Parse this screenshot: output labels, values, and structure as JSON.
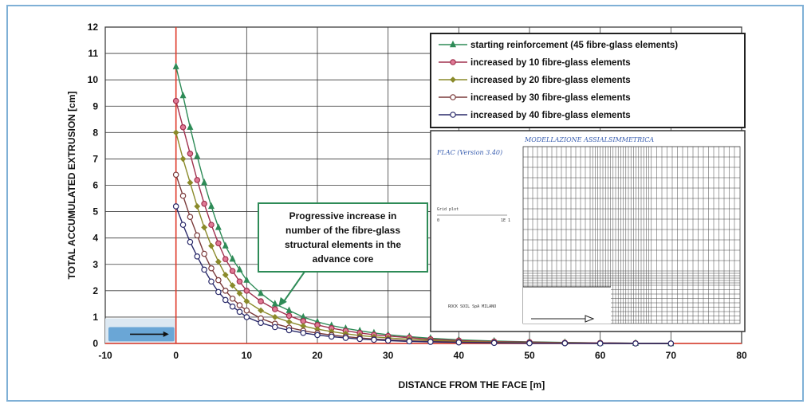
{
  "chart_data": {
    "type": "line",
    "title": "",
    "xlabel": "DISTANCE FROM THE FACE  [m]",
    "ylabel": "TOTAL ACCUMULATED EXTRUSION  [cm]",
    "xlim": [
      -10,
      80
    ],
    "ylim": [
      0,
      12
    ],
    "xticks": [
      "-10",
      "0",
      "10",
      "20",
      "30",
      "40",
      "50",
      "60",
      "70",
      "80"
    ],
    "yticks": [
      "0",
      "1",
      "2",
      "3",
      "4",
      "5",
      "6",
      "7",
      "8",
      "9",
      "10",
      "11",
      "12"
    ],
    "grid": true,
    "legend_position": "top-right",
    "series": [
      {
        "name": "starting reinforcement (45 fibre-glass elements)",
        "color": "#2e8b57",
        "marker": "triangle",
        "x": [
          0,
          1,
          2,
          3,
          4,
          5,
          6,
          7,
          8,
          9,
          10,
          12,
          14,
          16,
          18,
          20,
          22,
          24,
          26,
          28,
          30,
          33,
          36,
          40,
          45,
          50,
          55,
          60,
          65,
          70
        ],
        "y": [
          10.5,
          9.4,
          8.2,
          7.1,
          6.1,
          5.2,
          4.4,
          3.7,
          3.2,
          2.8,
          2.4,
          1.9,
          1.5,
          1.25,
          1.0,
          0.82,
          0.68,
          0.57,
          0.48,
          0.4,
          0.33,
          0.26,
          0.2,
          0.14,
          0.09,
          0.06,
          0.04,
          0.02,
          0.01,
          0.0
        ]
      },
      {
        "name": "increased by 10 fibre-glass elements",
        "color": "#a0304e",
        "marker": "circle",
        "x": [
          0,
          1,
          2,
          3,
          4,
          5,
          6,
          7,
          8,
          9,
          10,
          12,
          14,
          16,
          18,
          20,
          22,
          24,
          26,
          28,
          30,
          33,
          36,
          40,
          45,
          50,
          55,
          60,
          65,
          70
        ],
        "y": [
          9.2,
          8.2,
          7.2,
          6.2,
          5.3,
          4.5,
          3.8,
          3.2,
          2.75,
          2.35,
          2.0,
          1.6,
          1.3,
          1.05,
          0.85,
          0.7,
          0.58,
          0.48,
          0.4,
          0.33,
          0.28,
          0.22,
          0.16,
          0.11,
          0.07,
          0.05,
          0.03,
          0.02,
          0.01,
          0.0
        ]
      },
      {
        "name": "increased by 20 fibre-glass elements",
        "color": "#8a8a2a",
        "marker": "diamond",
        "x": [
          0,
          1,
          2,
          3,
          4,
          5,
          6,
          7,
          8,
          9,
          10,
          12,
          14,
          16,
          18,
          20,
          22,
          24,
          26,
          28,
          30,
          33,
          36,
          40,
          45,
          50,
          55,
          60,
          65,
          70
        ],
        "y": [
          8.0,
          7.0,
          6.1,
          5.2,
          4.4,
          3.7,
          3.1,
          2.6,
          2.2,
          1.9,
          1.6,
          1.25,
          1.0,
          0.82,
          0.66,
          0.54,
          0.45,
          0.37,
          0.3,
          0.25,
          0.21,
          0.16,
          0.12,
          0.08,
          0.05,
          0.03,
          0.02,
          0.01,
          0.01,
          0.0
        ]
      },
      {
        "name": "increased by 30 fibre-glass elements",
        "color": "#7a3a3a",
        "marker": "open-circle",
        "x": [
          0,
          1,
          2,
          3,
          4,
          5,
          6,
          7,
          8,
          9,
          10,
          12,
          14,
          16,
          18,
          20,
          22,
          24,
          26,
          28,
          30,
          33,
          36,
          40,
          45,
          50,
          55,
          60,
          65,
          70
        ],
        "y": [
          6.4,
          5.6,
          4.8,
          4.1,
          3.4,
          2.85,
          2.4,
          2.0,
          1.7,
          1.45,
          1.25,
          0.95,
          0.75,
          0.6,
          0.48,
          0.39,
          0.32,
          0.26,
          0.21,
          0.17,
          0.14,
          0.1,
          0.08,
          0.05,
          0.03,
          0.02,
          0.01,
          0.01,
          0.0,
          0.0
        ]
      },
      {
        "name": "increased by 40 fibre-glass elements",
        "color": "#2a2a6a",
        "marker": "open-circle",
        "x": [
          0,
          1,
          2,
          3,
          4,
          5,
          6,
          7,
          8,
          9,
          10,
          12,
          14,
          16,
          18,
          20,
          22,
          24,
          26,
          28,
          30,
          33,
          36,
          40,
          45,
          50,
          55,
          60,
          65,
          70
        ],
        "y": [
          5.2,
          4.5,
          3.85,
          3.3,
          2.8,
          2.35,
          1.95,
          1.65,
          1.4,
          1.2,
          1.0,
          0.78,
          0.62,
          0.5,
          0.4,
          0.32,
          0.26,
          0.21,
          0.17,
          0.14,
          0.11,
          0.08,
          0.06,
          0.04,
          0.02,
          0.01,
          0.01,
          0.0,
          0.0,
          0.0
        ]
      }
    ],
    "annotation": {
      "lines": [
        "Progressive increase in",
        "number of the fibre-glass",
        "structural elements in the",
        "advance core"
      ],
      "arrow_to": {
        "x": 14.5,
        "y": 1.4
      }
    }
  },
  "colors": {
    "frame_border": "#7fb0d6",
    "zero_line": "#e03a2a",
    "grid": "#3a3a3a",
    "annotation_border": "#2e8b57"
  },
  "inset": {
    "title_left": "FLAC (Version 3.40)",
    "title_right": "MODELLAZIONE ASSIALSIMMETRICA",
    "grid_plot_label": "Grid plot",
    "scale_left": "0",
    "scale_right": "1E 1",
    "footer": "ROCK SOIL SpA MILANO"
  }
}
